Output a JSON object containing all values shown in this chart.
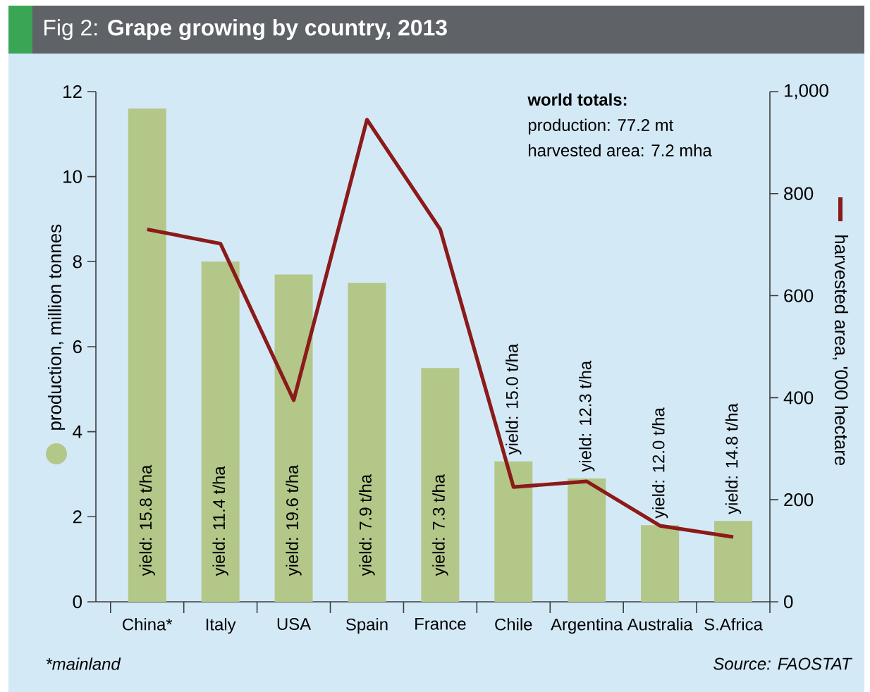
{
  "chart_data": {
    "type": "bar",
    "title": "Fig 2: **Grape growing by country, 2013**",
    "categories": [
      "China*",
      "Italy",
      "USA",
      "Spain",
      "France",
      "Chile",
      "Argentina",
      "Australia",
      "S.Africa"
    ],
    "ylabel": "production, million tonnes",
    "y2label": "harvested area, '000 hectare",
    "ylim": [
      0,
      12
    ],
    "yticks": [
      0,
      2,
      4,
      6,
      8,
      10,
      12
    ],
    "y2lim": [
      0,
      1000
    ],
    "y2ticks": [
      0,
      200,
      400,
      600,
      800,
      {
        "value": 1000,
        "label": "1,000"
      }
    ],
    "series": [
      {
        "color": "#b3c788",
        "values": [
          11.6,
          8.0,
          7.7,
          7.5,
          5.5,
          3.3,
          2.9,
          1.8,
          1.9
        ]
      },
      {
        "type": "line",
        "axis": "y2",
        "color": "#8b1a1a",
        "values": [
          730,
          702,
          395,
          945,
          730,
          225,
          236,
          149,
          127
        ]
      }
    ],
    "annotations": [
      "yield: 15.8 t/ha",
      "yield: 11.4 t/ha",
      "yield: 19.6 t/ha",
      "yield: 7.9 t/ha",
      "yield: 7.3 t/ha",
      "yield: 15.0 t/ha",
      "yield: 12.3 t/ha",
      "yield: 12.0 t/ha",
      "yield: 14.8 t/ha",
      "world totals:",
      "production: 77.2 mt",
      "harvested area: 7.2 mha",
      "*mainland",
      "Source: FAOSTAT"
    ]
  }
}
